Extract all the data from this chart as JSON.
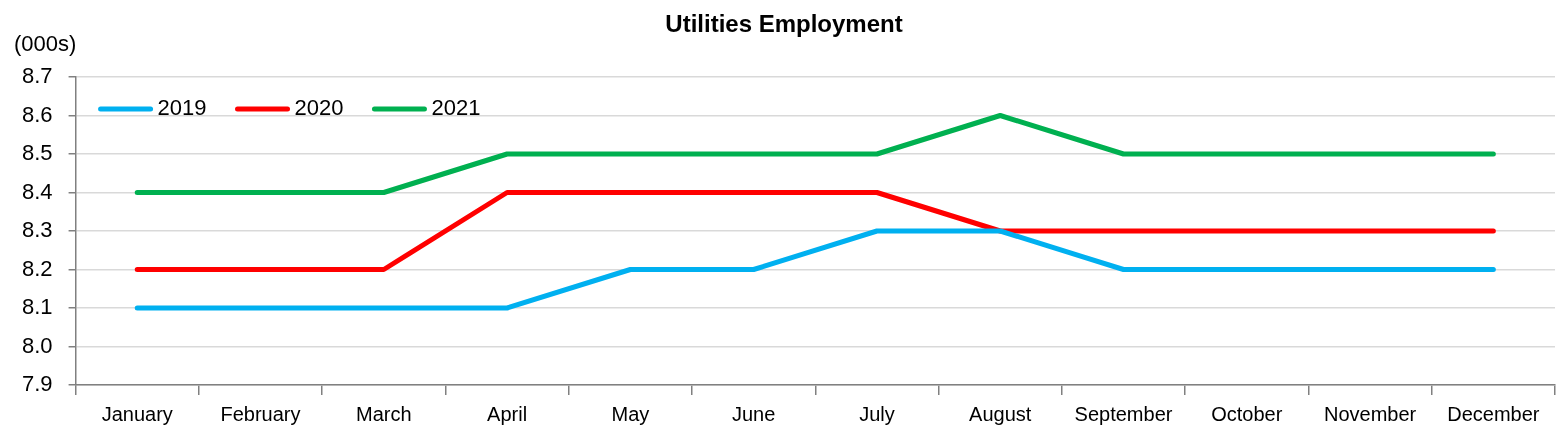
{
  "chart_data": {
    "type": "line",
    "title": "Utilities Employment",
    "ylabel": "(000s)",
    "categories": [
      "January",
      "February",
      "March",
      "April",
      "May",
      "June",
      "July",
      "August",
      "September",
      "October",
      "November",
      "December"
    ],
    "series": [
      {
        "name": "2019",
        "color": "#00b0f0",
        "values": [
          8.1,
          8.1,
          8.1,
          8.1,
          8.2,
          8.2,
          8.3,
          8.3,
          8.2,
          8.2,
          8.2,
          8.2
        ]
      },
      {
        "name": "2020",
        "color": "#ff0000",
        "values": [
          8.2,
          8.2,
          8.2,
          8.4,
          8.4,
          8.4,
          8.4,
          8.3,
          8.3,
          8.3,
          8.3,
          8.3
        ]
      },
      {
        "name": "2021",
        "color": "#00b050",
        "values": [
          8.4,
          8.4,
          8.4,
          8.5,
          8.5,
          8.5,
          8.5,
          8.6,
          8.5,
          8.5,
          8.5,
          8.5
        ]
      }
    ],
    "ylim": [
      7.9,
      8.7
    ],
    "yticks": [
      7.9,
      {
        "value": 8,
        "label": "8.0"
      },
      8.1,
      8.2,
      8.3,
      8.4,
      8.5,
      8.6,
      8.7
    ],
    "grid": "y",
    "legend": "top left",
    "marker": "none",
    "line_style": "solid"
  }
}
